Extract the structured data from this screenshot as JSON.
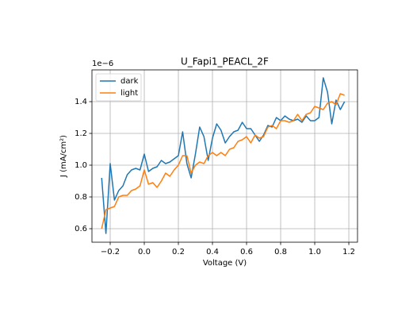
{
  "chart_data": {
    "type": "line",
    "title": "U_Fapi1_PEACL_2F",
    "x_label": "Voltage (V)",
    "y_label": "J (mA/cm²)",
    "y_offset": "1e−6",
    "x": [
      -0.25,
      -0.225,
      -0.2,
      -0.175,
      -0.15,
      -0.125,
      -0.1,
      -0.075,
      -0.05,
      -0.025,
      0,
      0.025,
      0.05,
      0.075,
      0.1,
      0.125,
      0.15,
      0.175,
      0.2,
      0.225,
      0.25,
      0.275,
      0.3,
      0.325,
      0.35,
      0.375,
      0.4,
      0.425,
      0.45,
      0.475,
      0.5,
      0.525,
      0.55,
      0.575,
      0.6,
      0.625,
      0.65,
      0.675,
      0.7,
      0.725,
      0.75,
      0.775,
      0.8,
      0.825,
      0.85,
      0.875,
      0.9,
      0.925,
      0.95,
      0.975,
      1.0,
      1.025,
      1.05,
      1.075,
      1.1,
      1.125,
      1.15,
      1.175
    ],
    "series": [
      {
        "name": "dark",
        "color": "#1f77b4",
        "values": [
          0.92,
          0.57,
          1.01,
          0.78,
          0.84,
          0.87,
          0.94,
          0.97,
          0.98,
          0.97,
          1.07,
          0.96,
          0.98,
          0.99,
          1.03,
          1.01,
          1.02,
          1.04,
          1.06,
          1.21,
          1.01,
          0.92,
          1.07,
          1.24,
          1.18,
          1.03,
          1.17,
          1.26,
          1.22,
          1.14,
          1.18,
          1.21,
          1.22,
          1.27,
          1.23,
          1.23,
          1.19,
          1.15,
          1.19,
          1.25,
          1.24,
          1.3,
          1.28,
          1.31,
          1.29,
          1.28,
          1.29,
          1.27,
          1.31,
          1.28,
          1.28,
          1.3,
          1.55,
          1.46,
          1.26,
          1.41,
          1.35,
          1.4
        ]
      },
      {
        "name": "light",
        "color": "#ff7f0e",
        "values": [
          0.6,
          0.72,
          0.73,
          0.74,
          0.8,
          0.81,
          0.81,
          0.84,
          0.85,
          0.87,
          0.97,
          0.88,
          0.89,
          0.86,
          0.9,
          0.95,
          0.93,
          0.97,
          1.0,
          1.06,
          1.06,
          0.95,
          1.0,
          1.02,
          1.01,
          1.06,
          1.08,
          1.06,
          1.08,
          1.06,
          1.1,
          1.11,
          1.15,
          1.16,
          1.18,
          1.14,
          1.19,
          1.17,
          1.18,
          1.24,
          1.25,
          1.23,
          1.28,
          1.28,
          1.27,
          1.28,
          1.32,
          1.28,
          1.32,
          1.33,
          1.37,
          1.36,
          1.35,
          1.39,
          1.4,
          1.38,
          1.45,
          1.44
        ]
      }
    ],
    "xlim": [
      -0.307,
      1.251
    ],
    "xticks": [
      {
        "value": -0.2,
        "label": "−0.2"
      },
      {
        "value": 0,
        "label": "0.0"
      },
      0.2,
      0.4,
      0.6,
      0.8,
      {
        "value": 1,
        "label": "1.0"
      },
      1.2
    ],
    "ylim": [
      0.515,
      1.6
    ],
    "yticks": [
      0.6,
      0.8,
      {
        "value": 1,
        "label": "1.0"
      },
      1.2,
      1.4
    ],
    "grid": true,
    "legend": "upper left"
  }
}
